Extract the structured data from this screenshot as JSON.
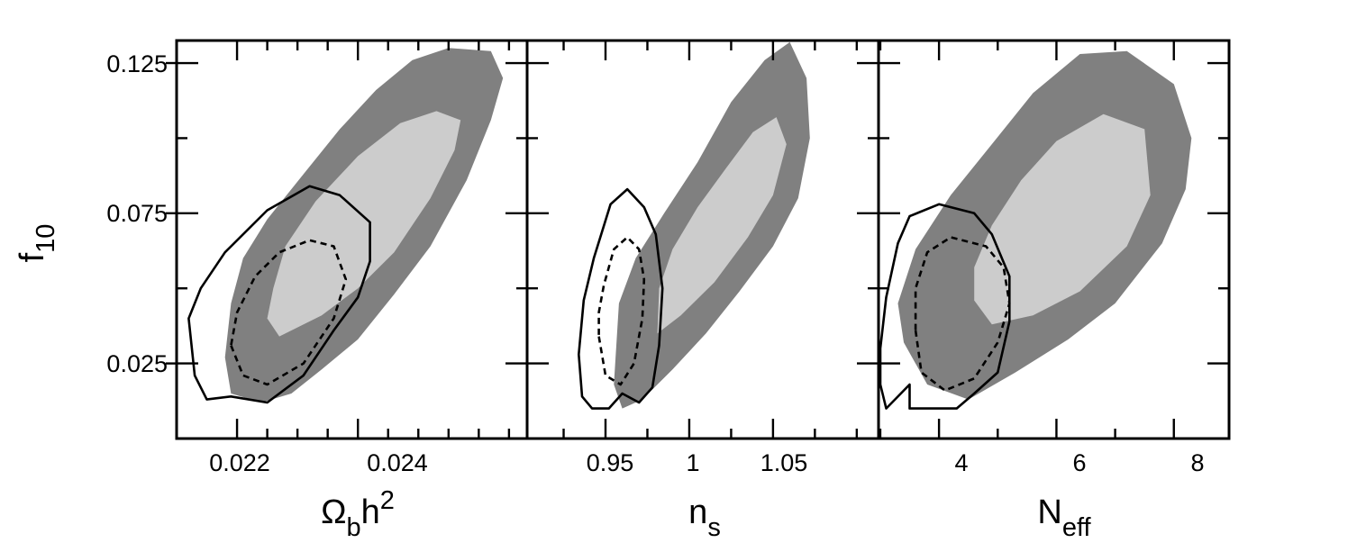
{
  "chart_data": {
    "type": "contour",
    "y_axis": {
      "label_main": "f",
      "label_sub": "10",
      "ylim": [
        0.0,
        0.1325
      ],
      "ticks": [
        0.025,
        0.075,
        0.125
      ],
      "tick_labels": [
        "0.025",
        "0.075",
        "0.125"
      ],
      "minor_ticks": [
        0.05,
        0.1
      ]
    },
    "colors": {
      "outer_fill": "#808080",
      "inner_fill": "#cccccc",
      "line": "#000000"
    },
    "panels": [
      {
        "id": "omega",
        "xlabel_main": "Ω",
        "xlabel_sub": "b",
        "xlabel_rest": "h",
        "xlabel_sup": "2",
        "xlim": [
          0.021,
          0.0268
        ],
        "ticks": [
          0.022,
          0.024
        ],
        "tick_labels": [
          "0.022",
          "0.024"
        ],
        "minor_ticks": [
          0.0225,
          0.023,
          0.0235,
          0.0245,
          0.025,
          0.0255,
          0.026,
          0.0265
        ],
        "filled_outer": [
          [
            0.0219,
            0.015
          ],
          [
            0.0224,
            0.012
          ],
          [
            0.0229,
            0.015
          ],
          [
            0.0234,
            0.023
          ],
          [
            0.024,
            0.033
          ],
          [
            0.0246,
            0.048
          ],
          [
            0.0252,
            0.064
          ],
          [
            0.0258,
            0.086
          ],
          [
            0.0262,
            0.106
          ],
          [
            0.0264,
            0.12
          ],
          [
            0.0262,
            0.129
          ],
          [
            0.0255,
            0.13
          ],
          [
            0.0249,
            0.126
          ],
          [
            0.0243,
            0.116
          ],
          [
            0.0237,
            0.103
          ],
          [
            0.0231,
            0.088
          ],
          [
            0.0225,
            0.073
          ],
          [
            0.0221,
            0.06
          ],
          [
            0.0219,
            0.045
          ],
          [
            0.0218,
            0.027
          ]
        ],
        "filled_inner": [
          [
            0.0227,
            0.034
          ],
          [
            0.0234,
            0.041
          ],
          [
            0.024,
            0.05
          ],
          [
            0.0246,
            0.062
          ],
          [
            0.0252,
            0.08
          ],
          [
            0.0256,
            0.096
          ],
          [
            0.0257,
            0.106
          ],
          [
            0.0253,
            0.109
          ],
          [
            0.0247,
            0.105
          ],
          [
            0.024,
            0.094
          ],
          [
            0.0233,
            0.079
          ],
          [
            0.0228,
            0.064
          ],
          [
            0.0226,
            0.05
          ],
          [
            0.0225,
            0.04
          ]
        ],
        "line_solid": [
          [
            0.0215,
            0.013
          ],
          [
            0.0219,
            0.014
          ],
          [
            0.0225,
            0.012
          ],
          [
            0.0231,
            0.021
          ],
          [
            0.0236,
            0.036
          ],
          [
            0.024,
            0.047
          ],
          [
            0.0242,
            0.059
          ],
          [
            0.0242,
            0.072
          ],
          [
            0.0237,
            0.081
          ],
          [
            0.0232,
            0.084
          ],
          [
            0.0225,
            0.076
          ],
          [
            0.0218,
            0.062
          ],
          [
            0.0214,
            0.05
          ],
          [
            0.0212,
            0.04
          ],
          [
            0.0213,
            0.021
          ]
        ],
        "line_dashed": [
          [
            0.0219,
            0.031
          ],
          [
            0.0221,
            0.021
          ],
          [
            0.0225,
            0.018
          ],
          [
            0.0231,
            0.025
          ],
          [
            0.0236,
            0.04
          ],
          [
            0.0238,
            0.053
          ],
          [
            0.0236,
            0.064
          ],
          [
            0.0232,
            0.066
          ],
          [
            0.0227,
            0.062
          ],
          [
            0.0223,
            0.054
          ],
          [
            0.022,
            0.042
          ]
        ]
      },
      {
        "id": "ns",
        "xlabel_main": "n",
        "xlabel_sub": "s",
        "xlabel_rest": "",
        "xlabel_sup": "",
        "xlim": [
          0.9032,
          1.113
        ],
        "ticks": [
          0.95,
          1.0,
          1.05
        ],
        "tick_labels": [
          "0.95",
          "1",
          "1.05"
        ],
        "minor_ticks": [
          0.925,
          0.975,
          1.025,
          1.075,
          1.1
        ],
        "filled_outer": [
          [
            0.955,
            0.018
          ],
          [
            0.96,
            0.01
          ],
          [
            0.972,
            0.013
          ],
          [
            0.99,
            0.023
          ],
          [
            1.01,
            0.035
          ],
          [
            1.03,
            0.049
          ],
          [
            1.05,
            0.064
          ],
          [
            1.065,
            0.08
          ],
          [
            1.072,
            0.1
          ],
          [
            1.07,
            0.12
          ],
          [
            1.06,
            0.132
          ],
          [
            1.045,
            0.126
          ],
          [
            1.025,
            0.112
          ],
          [
            1.005,
            0.092
          ],
          [
            0.985,
            0.075
          ],
          [
            0.968,
            0.06
          ],
          [
            0.958,
            0.045
          ]
        ],
        "filled_inner": [
          [
            0.981,
            0.035
          ],
          [
            0.995,
            0.041
          ],
          [
            1.015,
            0.052
          ],
          [
            1.035,
            0.067
          ],
          [
            1.05,
            0.081
          ],
          [
            1.058,
            0.098
          ],
          [
            1.052,
            0.107
          ],
          [
            1.038,
            0.102
          ],
          [
            1.022,
            0.09
          ],
          [
            1.005,
            0.077
          ],
          [
            0.99,
            0.063
          ],
          [
            0.982,
            0.05
          ]
        ],
        "line_solid": [
          [
            0.942,
            0.01
          ],
          [
            0.952,
            0.01
          ],
          [
            0.96,
            0.015
          ],
          [
            0.97,
            0.012
          ],
          [
            0.978,
            0.017
          ],
          [
            0.982,
            0.031
          ],
          [
            0.984,
            0.05
          ],
          [
            0.98,
            0.068
          ],
          [
            0.973,
            0.077
          ],
          [
            0.963,
            0.083
          ],
          [
            0.953,
            0.078
          ],
          [
            0.943,
            0.06
          ],
          [
            0.937,
            0.046
          ],
          [
            0.934,
            0.028
          ],
          [
            0.936,
            0.014
          ]
        ],
        "line_dashed": [
          [
            0.946,
            0.034
          ],
          [
            0.95,
            0.021
          ],
          [
            0.959,
            0.018
          ],
          [
            0.967,
            0.025
          ],
          [
            0.972,
            0.04
          ],
          [
            0.973,
            0.053
          ],
          [
            0.97,
            0.063
          ],
          [
            0.963,
            0.067
          ],
          [
            0.955,
            0.063
          ],
          [
            0.949,
            0.051
          ],
          [
            0.946,
            0.042
          ]
        ]
      },
      {
        "id": "neff",
        "xlabel_main": "N",
        "xlabel_sub": "eff",
        "xlabel_rest": "",
        "xlabel_sup": "",
        "xlim": [
          2.97,
          8.94
        ],
        "ticks": [
          4,
          6,
          8
        ],
        "tick_labels": [
          "4",
          "6",
          "8"
        ],
        "minor_ticks": [
          3,
          5,
          7
        ],
        "filled_outer": [
          [
            3.4,
            0.032
          ],
          [
            3.8,
            0.018
          ],
          [
            4.5,
            0.013
          ],
          [
            5.3,
            0.022
          ],
          [
            6.2,
            0.033
          ],
          [
            7.0,
            0.045
          ],
          [
            7.8,
            0.065
          ],
          [
            8.2,
            0.083
          ],
          [
            8.3,
            0.1
          ],
          [
            8.0,
            0.118
          ],
          [
            7.2,
            0.129
          ],
          [
            6.4,
            0.128
          ],
          [
            5.6,
            0.115
          ],
          [
            4.9,
            0.098
          ],
          [
            4.2,
            0.081
          ],
          [
            3.6,
            0.063
          ],
          [
            3.3,
            0.045
          ]
        ],
        "filled_inner": [
          [
            4.9,
            0.038
          ],
          [
            5.6,
            0.041
          ],
          [
            6.4,
            0.049
          ],
          [
            7.2,
            0.064
          ],
          [
            7.6,
            0.081
          ],
          [
            7.5,
            0.103
          ],
          [
            6.8,
            0.108
          ],
          [
            6.0,
            0.099
          ],
          [
            5.4,
            0.086
          ],
          [
            4.9,
            0.071
          ],
          [
            4.6,
            0.057
          ],
          [
            4.6,
            0.046
          ]
        ],
        "line_solid": [
          [
            3.1,
            0.01
          ],
          [
            3.5,
            0.018
          ],
          [
            3.5,
            0.01
          ],
          [
            4.3,
            0.01
          ],
          [
            4.6,
            0.015
          ],
          [
            5.0,
            0.022
          ],
          [
            5.2,
            0.039
          ],
          [
            5.2,
            0.054
          ],
          [
            4.9,
            0.068
          ],
          [
            4.6,
            0.075
          ],
          [
            4.0,
            0.078
          ],
          [
            3.5,
            0.074
          ],
          [
            3.3,
            0.065
          ],
          [
            3.1,
            0.047
          ],
          [
            3.0,
            0.03
          ],
          [
            3.0,
            0.018
          ]
        ],
        "line_dashed": [
          [
            3.6,
            0.036
          ],
          [
            3.7,
            0.022
          ],
          [
            4.1,
            0.016
          ],
          [
            4.6,
            0.02
          ],
          [
            5.0,
            0.032
          ],
          [
            5.2,
            0.045
          ],
          [
            5.1,
            0.057
          ],
          [
            4.8,
            0.064
          ],
          [
            4.2,
            0.067
          ],
          [
            3.8,
            0.062
          ],
          [
            3.6,
            0.05
          ]
        ]
      }
    ]
  }
}
